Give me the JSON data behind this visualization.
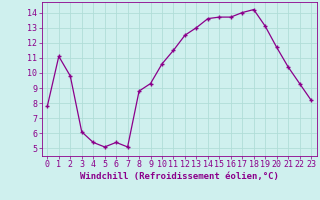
{
  "x": [
    0,
    1,
    2,
    3,
    4,
    5,
    6,
    7,
    8,
    9,
    10,
    11,
    12,
    13,
    14,
    15,
    16,
    17,
    18,
    19,
    20,
    21,
    22,
    23
  ],
  "y": [
    7.8,
    11.1,
    9.8,
    6.1,
    5.4,
    5.1,
    5.4,
    5.1,
    8.8,
    9.3,
    10.6,
    11.5,
    12.5,
    13.0,
    13.6,
    13.7,
    13.7,
    14.0,
    14.2,
    13.1,
    11.7,
    10.4,
    9.3,
    8.2
  ],
  "line_color": "#8b008b",
  "marker": "+",
  "marker_size": 3,
  "xlabel": "Windchill (Refroidissement éolien,°C)",
  "ylim": [
    4.5,
    14.7
  ],
  "yticks": [
    5,
    6,
    7,
    8,
    9,
    10,
    11,
    12,
    13,
    14
  ],
  "xlim": [
    -0.5,
    23.5
  ],
  "xticks": [
    0,
    1,
    2,
    3,
    4,
    5,
    6,
    7,
    8,
    9,
    10,
    11,
    12,
    13,
    14,
    15,
    16,
    17,
    18,
    19,
    20,
    21,
    22,
    23
  ],
  "bg_color": "#cff0ee",
  "grid_color": "#b0ddd8",
  "xlabel_fontsize": 6.5,
  "tick_fontsize": 6.0,
  "line_width": 0.9,
  "marker_edge_width": 1.0
}
